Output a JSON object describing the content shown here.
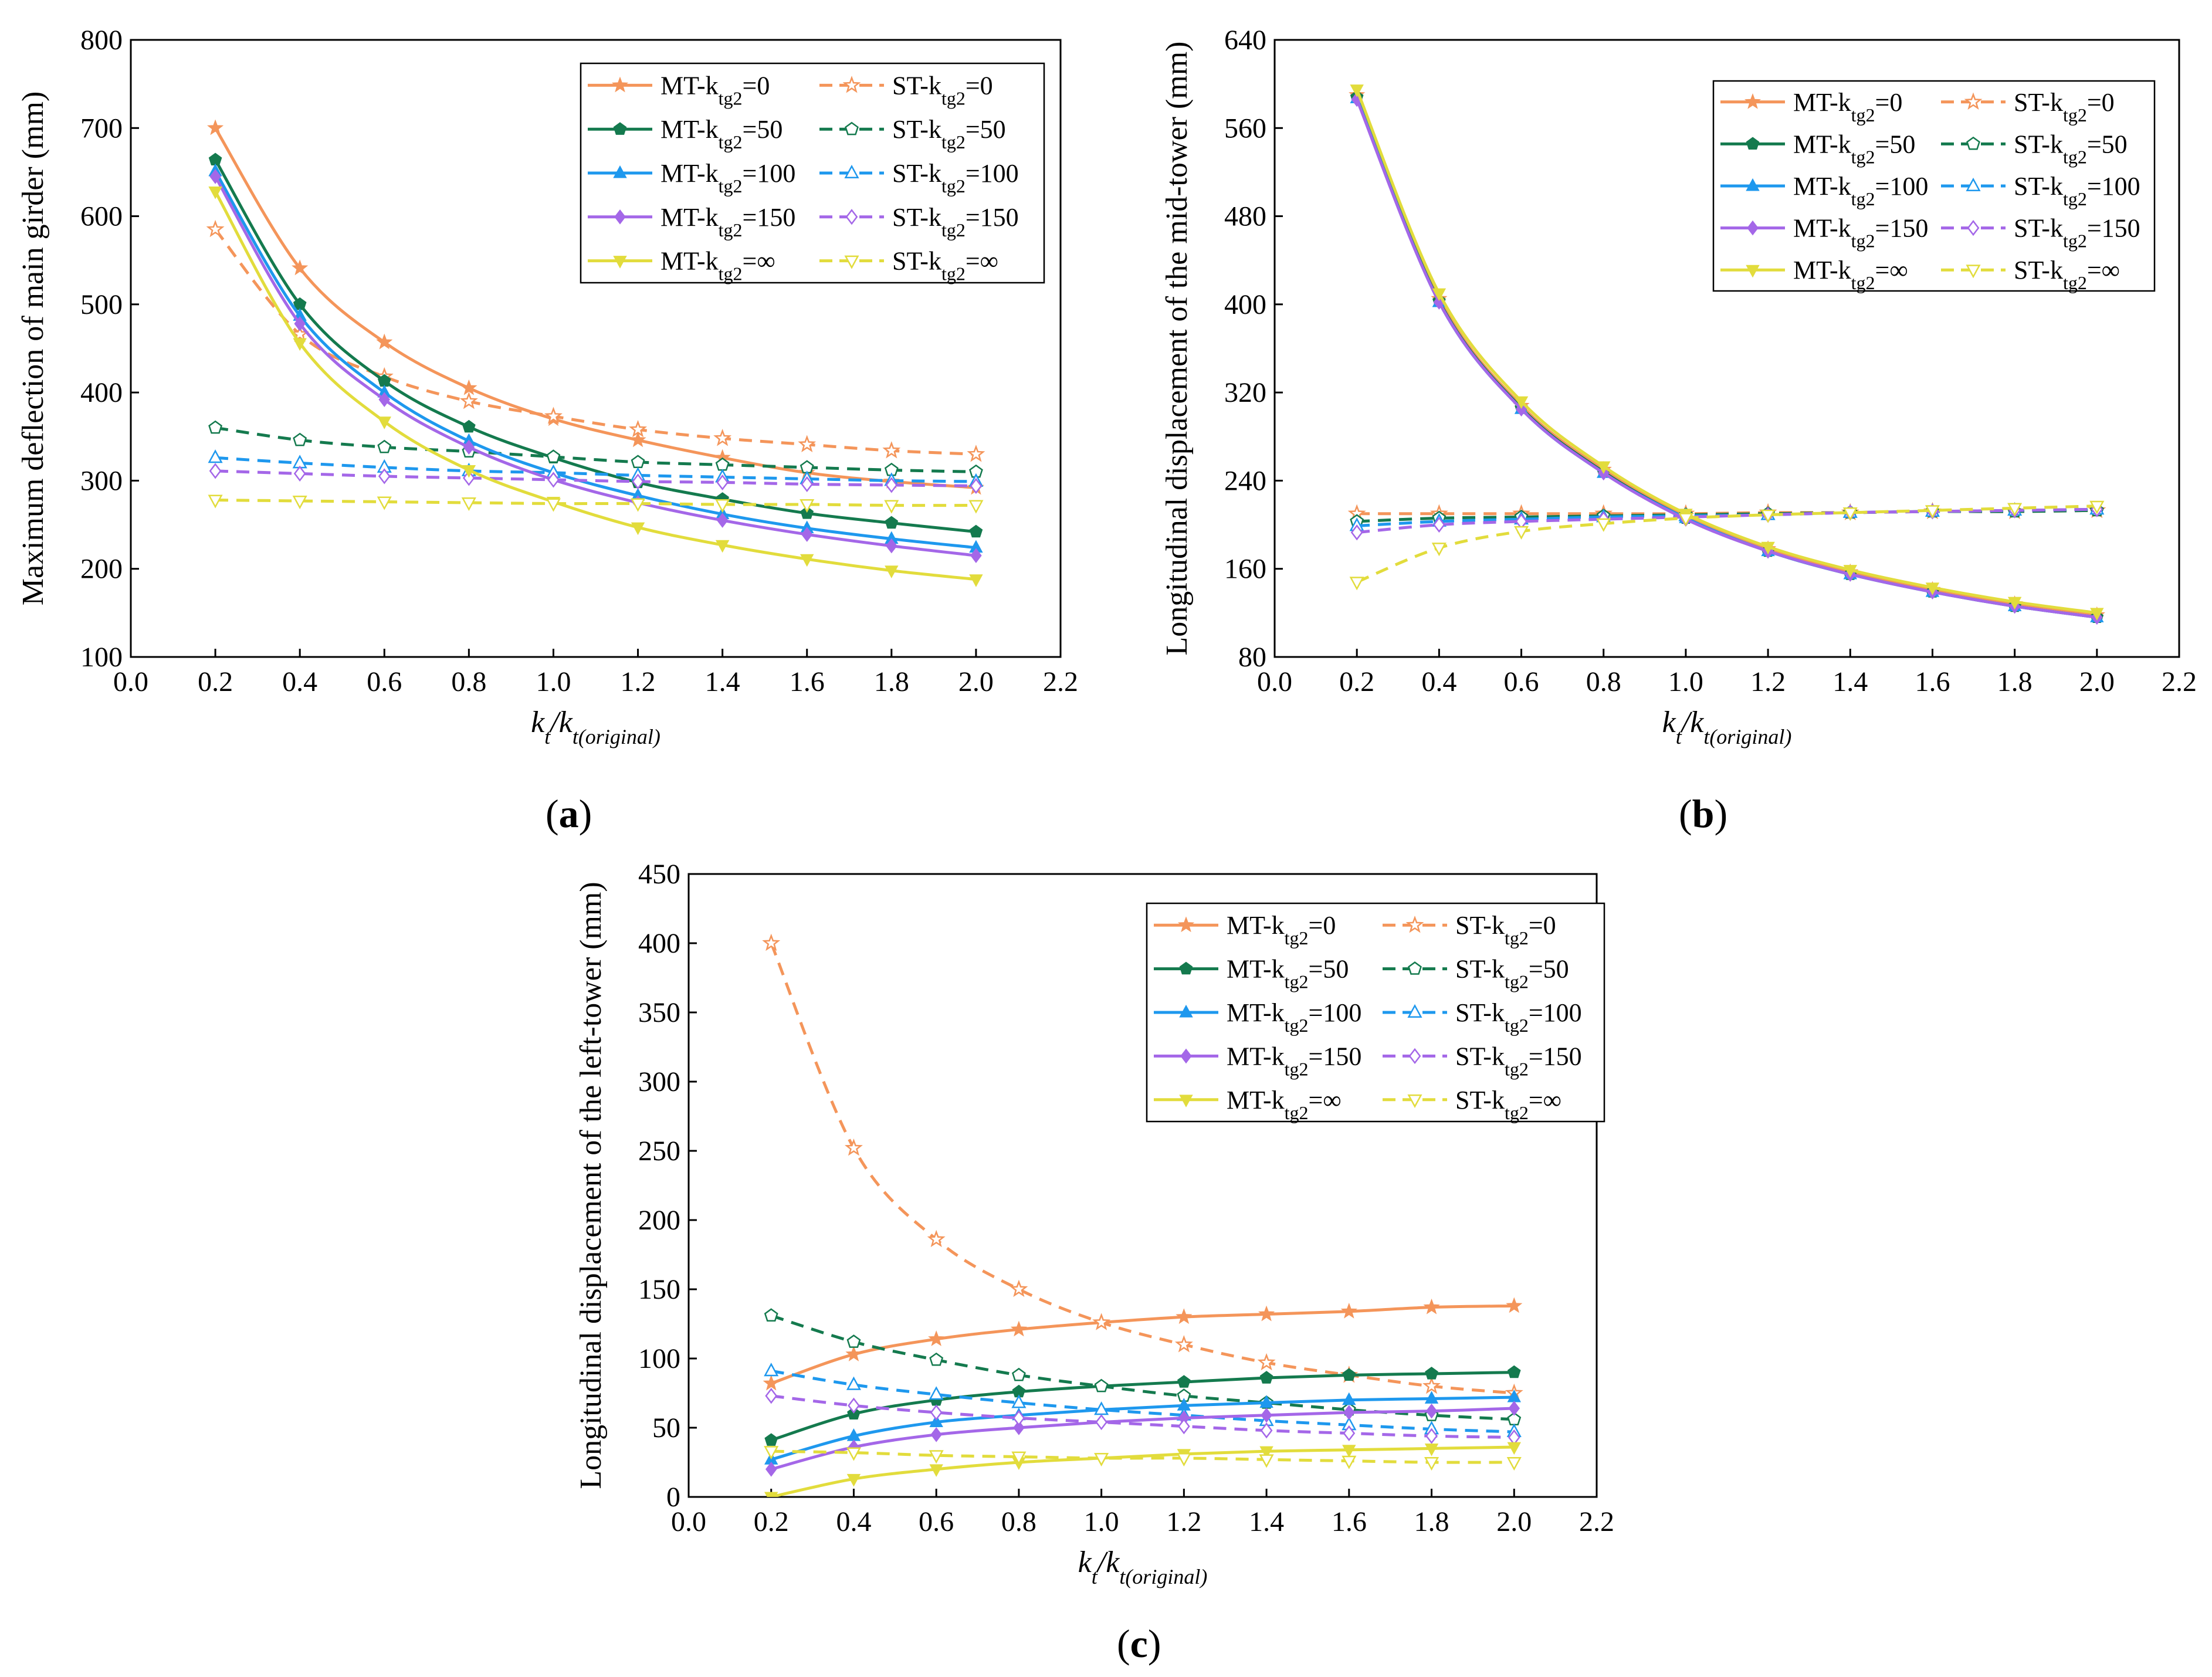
{
  "colors": {
    "kt0": "#F4955A",
    "kt50": "#147A4E",
    "kt100": "#1E98EE",
    "kt150": "#A467E8",
    "ktinf": "#E2DC3C"
  },
  "chart_data": [
    {
      "type": "line",
      "panel": "(a)",
      "panel_letter": "a",
      "xlabel": "kt/kt(original)",
      "ylabel": "Maximum deflection of main girder (mm)",
      "xlim": [
        0.0,
        2.2
      ],
      "ylim": [
        100,
        800
      ],
      "xticks": [
        0.0,
        0.2,
        0.4,
        0.6,
        0.8,
        1.0,
        1.2,
        1.4,
        1.6,
        1.8,
        2.0,
        2.2
      ],
      "yticks": [
        100,
        200,
        300,
        400,
        500,
        600,
        700,
        800
      ],
      "grid": false,
      "legend_position": "top-right",
      "x": [
        0.2,
        0.4,
        0.6,
        0.8,
        1.0,
        1.2,
        1.4,
        1.6,
        1.8,
        2.0
      ],
      "series": [
        {
          "name": "MT-ktg2=0",
          "label_prefix": "MT-k",
          "sub": "tg2",
          "label_suffix": "=0",
          "color_key": "kt0",
          "dash": false,
          "marker": "star",
          "values": [
            700,
            541,
            457,
            405,
            370,
            346,
            326,
            309,
            299,
            292
          ]
        },
        {
          "name": "ST-ktg2=0",
          "label_prefix": "ST-k",
          "sub": "tg2",
          "label_suffix": "=0",
          "color_key": "kt0",
          "dash": true,
          "marker": "star",
          "values": [
            585,
            466,
            418,
            390,
            373,
            358,
            348,
            341,
            334,
            330
          ]
        },
        {
          "name": "MT-ktg2=50",
          "label_prefix": "MT-k",
          "sub": "tg2",
          "label_suffix": "=50",
          "color_key": "kt50",
          "dash": false,
          "marker": "pentagon",
          "values": [
            664,
            500,
            413,
            361,
            326,
            298,
            279,
            263,
            252,
            242
          ]
        },
        {
          "name": "ST-ktg2=50",
          "label_prefix": "ST-k",
          "sub": "tg2",
          "label_suffix": "=50",
          "color_key": "kt50",
          "dash": true,
          "marker": "pentagon",
          "values": [
            360,
            346,
            338,
            333,
            327,
            321,
            318,
            315,
            312,
            310
          ]
        },
        {
          "name": "MT-ktg2=100",
          "label_prefix": "MT-k",
          "sub": "tg2",
          "label_suffix": "=100",
          "color_key": "kt100",
          "dash": false,
          "marker": "triangle",
          "values": [
            651,
            487,
            400,
            345,
            309,
            283,
            262,
            246,
            234,
            224
          ]
        },
        {
          "name": "ST-ktg2=100",
          "label_prefix": "ST-k",
          "sub": "tg2",
          "label_suffix": "=100",
          "color_key": "kt100",
          "dash": true,
          "marker": "triangle",
          "values": [
            326,
            320,
            315,
            311,
            309,
            306,
            304,
            302,
            300,
            299
          ]
        },
        {
          "name": "MT-ktg2=150",
          "label_prefix": "MT-k",
          "sub": "tg2",
          "label_suffix": "=150",
          "color_key": "kt150",
          "dash": false,
          "marker": "diamond",
          "values": [
            645,
            478,
            392,
            338,
            301,
            275,
            255,
            239,
            226,
            215
          ]
        },
        {
          "name": "ST-ktg2=150",
          "label_prefix": "ST-k",
          "sub": "tg2",
          "label_suffix": "=150",
          "color_key": "kt150",
          "dash": true,
          "marker": "diamond",
          "values": [
            311,
            308,
            305,
            303,
            301,
            299,
            298,
            296,
            295,
            294
          ]
        },
        {
          "name": "MT-ktg2=∞",
          "label_prefix": "MT-k",
          "sub": "tg2",
          "label_suffix": "=∞",
          "color_key": "ktinf",
          "dash": false,
          "marker": "tri-down",
          "values": [
            628,
            456,
            367,
            312,
            276,
            247,
            227,
            211,
            198,
            188
          ]
        },
        {
          "name": "ST-ktg2=∞",
          "label_prefix": "ST-k",
          "sub": "tg2",
          "label_suffix": "=∞",
          "color_key": "ktinf",
          "dash": true,
          "marker": "tri-down",
          "values": [
            278,
            277,
            276,
            275,
            274,
            274,
            273,
            273,
            272,
            272
          ]
        }
      ]
    },
    {
      "type": "line",
      "panel": "(b)",
      "panel_letter": "b",
      "xlabel": "kt/kt(original)",
      "ylabel": "Longitudinal displacement of the mid-tower (mm)",
      "xlim": [
        0.0,
        2.2
      ],
      "ylim": [
        80,
        640
      ],
      "xticks": [
        0.0,
        0.2,
        0.4,
        0.6,
        0.8,
        1.0,
        1.2,
        1.4,
        1.6,
        1.8,
        2.0,
        2.2
      ],
      "yticks": [
        80,
        160,
        240,
        320,
        400,
        480,
        560,
        640
      ],
      "grid": false,
      "legend_position": "top-right",
      "x": [
        0.2,
        0.4,
        0.6,
        0.8,
        1.0,
        1.2,
        1.4,
        1.6,
        1.8,
        2.0
      ],
      "series": [
        {
          "name": "MT-ktg2=0",
          "label_prefix": "MT-k",
          "sub": "tg2",
          "label_suffix": "=0",
          "color_key": "kt0",
          "dash": false,
          "marker": "star",
          "values": [
            590,
            405,
            308,
            250,
            208,
            178,
            157,
            141,
            128,
            118
          ]
        },
        {
          "name": "ST-ktg2=0",
          "label_prefix": "ST-k",
          "sub": "tg2",
          "label_suffix": "=0",
          "color_key": "kt0",
          "dash": true,
          "marker": "star",
          "values": [
            210,
            210,
            210,
            210,
            210,
            211,
            211,
            212,
            212,
            213
          ]
        },
        {
          "name": "MT-ktg2=50",
          "label_prefix": "MT-k",
          "sub": "tg2",
          "label_suffix": "=50",
          "color_key": "kt50",
          "dash": false,
          "marker": "pentagon",
          "values": [
            588,
            403,
            306,
            248,
            206,
            176,
            155,
            139,
            126,
            116
          ]
        },
        {
          "name": "ST-ktg2=50",
          "label_prefix": "ST-k",
          "sub": "tg2",
          "label_suffix": "=50",
          "color_key": "kt50",
          "dash": true,
          "marker": "pentagon",
          "values": [
            203,
            206,
            207,
            208,
            209,
            210,
            211,
            212,
            212,
            213
          ]
        },
        {
          "name": "MT-ktg2=100",
          "label_prefix": "MT-k",
          "sub": "tg2",
          "label_suffix": "=100",
          "color_key": "kt100",
          "dash": false,
          "marker": "triangle",
          "values": [
            587,
            402,
            305,
            247,
            206,
            176,
            155,
            139,
            126,
            116
          ]
        },
        {
          "name": "ST-ktg2=100",
          "label_prefix": "ST-k",
          "sub": "tg2",
          "label_suffix": "=100",
          "color_key": "kt100",
          "dash": true,
          "marker": "triangle",
          "values": [
            199,
            203,
            205,
            207,
            208,
            209,
            211,
            212,
            213,
            214
          ]
        },
        {
          "name": "MT-ktg2=150",
          "label_prefix": "MT-k",
          "sub": "tg2",
          "label_suffix": "=150",
          "color_key": "kt150",
          "dash": false,
          "marker": "diamond",
          "values": [
            586,
            402,
            305,
            247,
            205,
            176,
            155,
            139,
            126,
            116
          ]
        },
        {
          "name": "ST-ktg2=150",
          "label_prefix": "ST-k",
          "sub": "tg2",
          "label_suffix": "=150",
          "color_key": "kt150",
          "dash": true,
          "marker": "diamond",
          "values": [
            193,
            200,
            203,
            205,
            207,
            209,
            211,
            212,
            213,
            214
          ]
        },
        {
          "name": "MT-ktg2=∞",
          "label_prefix": "MT-k",
          "sub": "tg2",
          "label_suffix": "=∞",
          "color_key": "ktinf",
          "dash": false,
          "marker": "tri-down",
          "values": [
            595,
            410,
            312,
            253,
            210,
            180,
            159,
            143,
            130,
            120
          ]
        },
        {
          "name": "ST-ktg2=∞",
          "label_prefix": "ST-k",
          "sub": "tg2",
          "label_suffix": "=∞",
          "color_key": "ktinf",
          "dash": true,
          "marker": "tri-down",
          "values": [
            148,
            179,
            194,
            201,
            206,
            209,
            211,
            213,
            215,
            217
          ]
        }
      ]
    },
    {
      "type": "line",
      "panel": "(c)",
      "panel_letter": "c",
      "xlabel": "kt/kt(original)",
      "ylabel": "Longitudinal displacement of the left-tower (mm)",
      "xlim": [
        0.0,
        2.2
      ],
      "ylim": [
        0,
        450
      ],
      "xticks": [
        0.0,
        0.2,
        0.4,
        0.6,
        0.8,
        1.0,
        1.2,
        1.4,
        1.6,
        1.8,
        2.0,
        2.2
      ],
      "yticks": [
        0,
        50,
        100,
        150,
        200,
        250,
        300,
        350,
        400,
        450
      ],
      "grid": false,
      "legend_position": "top-right",
      "x": [
        0.2,
        0.4,
        0.6,
        0.8,
        1.0,
        1.2,
        1.4,
        1.6,
        1.8,
        2.0
      ],
      "series": [
        {
          "name": "MT-ktg2=0",
          "label_prefix": "MT-k",
          "sub": "tg2",
          "label_suffix": "=0",
          "color_key": "kt0",
          "dash": false,
          "marker": "star",
          "values": [
            82,
            103,
            114,
            121,
            126,
            130,
            132,
            134,
            137,
            138
          ]
        },
        {
          "name": "ST-ktg2=0",
          "label_prefix": "ST-k",
          "sub": "tg2",
          "label_suffix": "=0",
          "color_key": "kt0",
          "dash": true,
          "marker": "star",
          "values": [
            400,
            252,
            186,
            150,
            126,
            110,
            97,
            88,
            80,
            75
          ]
        },
        {
          "name": "MT-ktg2=50",
          "label_prefix": "MT-k",
          "sub": "tg2",
          "label_suffix": "=50",
          "color_key": "kt50",
          "dash": false,
          "marker": "pentagon",
          "values": [
            41,
            60,
            70,
            76,
            80,
            83,
            86,
            88,
            89,
            90
          ]
        },
        {
          "name": "ST-ktg2=50",
          "label_prefix": "ST-k",
          "sub": "tg2",
          "label_suffix": "=50",
          "color_key": "kt50",
          "dash": true,
          "marker": "pentagon",
          "values": [
            131,
            112,
            99,
            88,
            80,
            73,
            68,
            63,
            59,
            56
          ]
        },
        {
          "name": "MT-ktg2=100",
          "label_prefix": "MT-k",
          "sub": "tg2",
          "label_suffix": "=100",
          "color_key": "kt100",
          "dash": false,
          "marker": "triangle",
          "values": [
            27,
            44,
            54,
            59,
            63,
            66,
            68,
            70,
            71,
            72
          ]
        },
        {
          "name": "ST-ktg2=100",
          "label_prefix": "ST-k",
          "sub": "tg2",
          "label_suffix": "=100",
          "color_key": "kt100",
          "dash": true,
          "marker": "triangle",
          "values": [
            91,
            81,
            74,
            68,
            63,
            59,
            55,
            52,
            49,
            47
          ]
        },
        {
          "name": "MT-ktg2=150",
          "label_prefix": "MT-k",
          "sub": "tg2",
          "label_suffix": "=150",
          "color_key": "kt150",
          "dash": false,
          "marker": "diamond",
          "values": [
            20,
            36,
            45,
            50,
            54,
            57,
            59,
            61,
            62,
            64
          ]
        },
        {
          "name": "ST-ktg2=150",
          "label_prefix": "ST-k",
          "sub": "tg2",
          "label_suffix": "=150",
          "color_key": "kt150",
          "dash": true,
          "marker": "diamond",
          "values": [
            73,
            66,
            61,
            57,
            54,
            51,
            48,
            46,
            44,
            43
          ]
        },
        {
          "name": "MT-ktg2=∞",
          "label_prefix": "MT-k",
          "sub": "tg2",
          "label_suffix": "=∞",
          "color_key": "ktinf",
          "dash": false,
          "marker": "tri-down",
          "values": [
            0,
            13,
            20,
            25,
            28,
            31,
            33,
            34,
            35,
            36
          ]
        },
        {
          "name": "ST-ktg2=∞",
          "label_prefix": "ST-k",
          "sub": "tg2",
          "label_suffix": "=∞",
          "color_key": "ktinf",
          "dash": true,
          "marker": "tri-down",
          "values": [
            33,
            32,
            30,
            29,
            28,
            28,
            27,
            26,
            25,
            25
          ]
        }
      ]
    }
  ]
}
